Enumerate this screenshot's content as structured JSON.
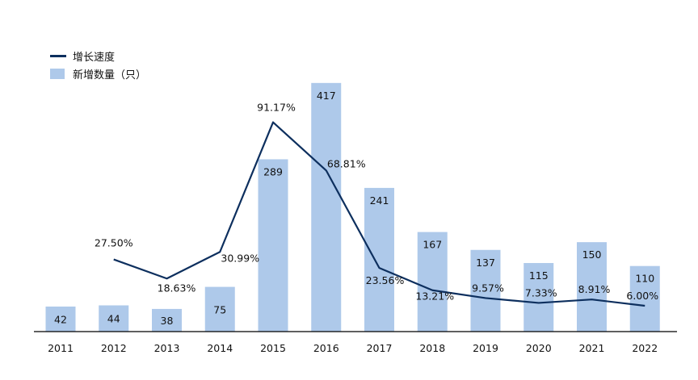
{
  "chart_data": {
    "type": "bar",
    "categories": [
      "2011",
      "2012",
      "2013",
      "2014",
      "2015",
      "2016",
      "2017",
      "2018",
      "2019",
      "2020",
      "2021",
      "2022"
    ],
    "series": [
      {
        "name": "新增数量（只）",
        "type": "bar",
        "values": [
          42,
          44,
          38,
          75,
          289,
          417,
          241,
          167,
          137,
          115,
          150,
          110
        ],
        "labels": [
          "42",
          "44",
          "38",
          "75",
          "289",
          "417",
          "241",
          "167",
          "137",
          "115",
          "150",
          "110"
        ]
      },
      {
        "name": "增长速度",
        "type": "line",
        "values": [
          null,
          27.5,
          18.63,
          30.99,
          91.17,
          68.81,
          23.56,
          13.21,
          9.57,
          7.33,
          8.91,
          6.0
        ],
        "labels": [
          "",
          "27.50%",
          "18.63%",
          "30.99%",
          "91.17%",
          "68.81%",
          "23.56%",
          "13.21%",
          "9.57%",
          "7.33%",
          "8.91%",
          "6.00%"
        ]
      }
    ],
    "legend_position": "top-left",
    "grid": false,
    "colors": {
      "bar": "#aec9ea",
      "line": "#0d2f5e",
      "axis": "#000000",
      "text": "#111111"
    }
  },
  "legend": {
    "line_label": "增长速度",
    "bar_label": "新增数量（只）"
  }
}
